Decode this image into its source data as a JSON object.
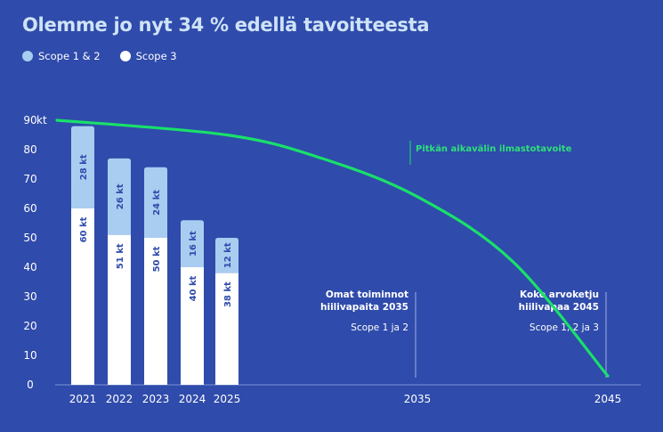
{
  "chart_data": {
    "type": "bar",
    "title": "Olemme jo nyt  34 % edellä tavoitteesta",
    "legend": [
      {
        "name": "Scope 1 & 2",
        "color": "#a9cdf0"
      },
      {
        "name": "Scope 3",
        "color": "#ffffff"
      }
    ],
    "categories": [
      "2021",
      "2022",
      "2023",
      "2024",
      "2025"
    ],
    "series": [
      {
        "name": "Scope 3",
        "color": "#ffffff",
        "values": [
          60,
          51,
          50,
          40,
          38
        ],
        "labels": [
          "60 kt",
          "51 kt",
          "50 kt",
          "40 kt",
          "38 kt"
        ]
      },
      {
        "name": "Scope 1 & 2",
        "color": "#a9cdf0",
        "values": [
          28,
          26,
          24,
          16,
          12
        ],
        "labels": [
          "28 kt",
          "26 kt",
          "24 kt",
          "16 kt",
          "12 kt"
        ]
      }
    ],
    "ylim": [
      0,
      90
    ],
    "yticks": [
      0,
      10,
      20,
      30,
      40,
      50,
      60,
      70,
      80,
      90
    ],
    "ytick_labels": [
      "0",
      "10",
      "20",
      "30",
      "40",
      "50",
      "60",
      "70",
      "80",
      "90"
    ],
    "yunit": "kt",
    "extra_xticks": [
      "2035",
      "2045"
    ],
    "target_curve": {
      "label": "Pitkän aikavälin ilmastotavoite",
      "color": "#19e06a",
      "x": [
        2020.5,
        2025,
        2030,
        2035,
        2040,
        2045
      ],
      "y": [
        90,
        85,
        77,
        64,
        42,
        3
      ]
    },
    "annotations": [
      {
        "year": "2035",
        "title_lines": [
          "Omat toiminnot",
          "hiilivapaita 2035"
        ],
        "subtitle": "Scope 1 ja 2"
      },
      {
        "year": "2045",
        "title_lines": [
          "Koko arvoketju",
          "hiilivapaa 2045"
        ],
        "subtitle": "Scope 1, 2 ja 3"
      }
    ]
  }
}
